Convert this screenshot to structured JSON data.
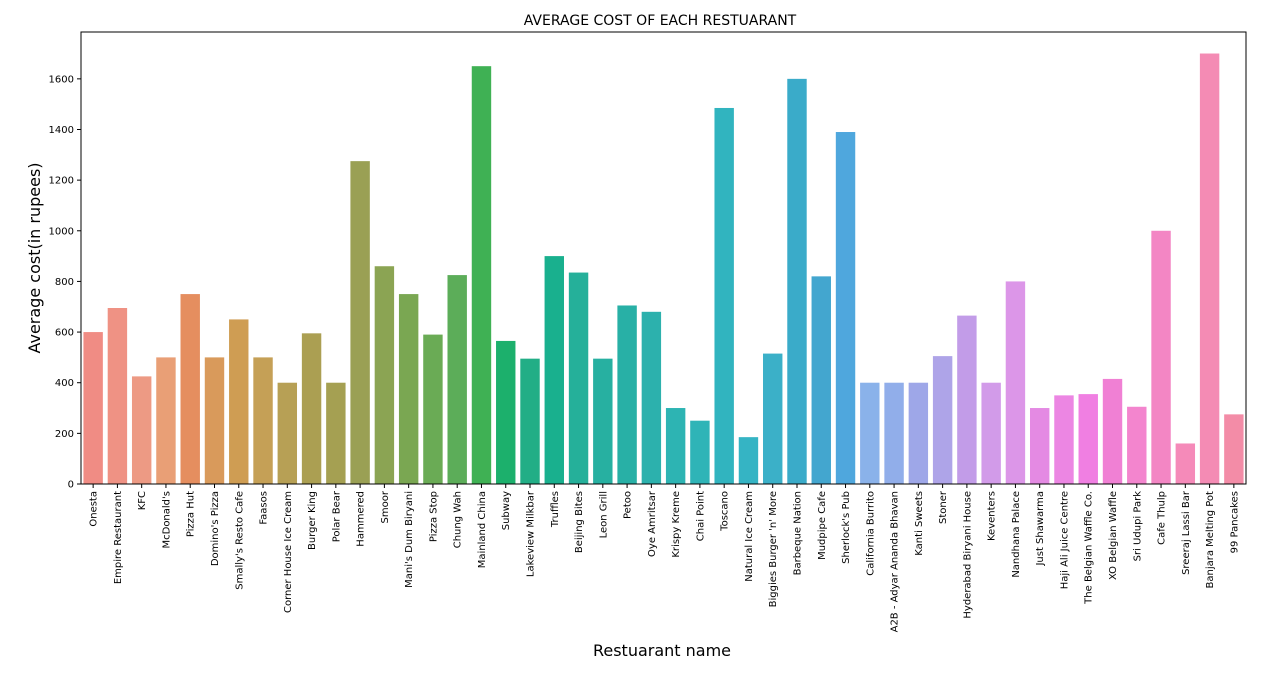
{
  "chart_data": {
    "type": "bar",
    "title": "AVERAGE COST OF EACH RESTUARANT",
    "xlabel": "Restuarant name",
    "ylabel": "Average cost(in rupees)",
    "ylim": [
      0,
      1785
    ],
    "yticks": [
      0,
      200,
      400,
      600,
      800,
      1000,
      1200,
      1400,
      1600
    ],
    "grid": false,
    "legend": "none",
    "categories": [
      "Onesta",
      "Empire Restaurant",
      "KFC",
      "McDonald's",
      "Pizza Hut",
      "Domino's Pizza",
      "Smally's Resto Cafe",
      "Faasos",
      "Corner House Ice Cream",
      "Burger King",
      "Polar Bear",
      "Hammered",
      "Smoor",
      "Mani's Dum Biryani",
      "Pizza Stop",
      "Chung Wah",
      "Mainland China",
      "Subway",
      "Lakeview Milkbar",
      "Truffles",
      "Beijing Bites",
      "Leon Grill",
      "Petoo",
      "Oye Amritsar",
      "Krispy Kreme",
      "Chai Point",
      "Toscano",
      "Natural Ice Cream",
      "Biggies Burger 'n' More",
      "Barbeque Nation",
      "Mudpipe Cafe",
      "Sherlock's Pub",
      "California Burrito",
      "A2B - Adyar Ananda Bhavan",
      "Kanti Sweets",
      "Stoner",
      "Hyderabad Biryani House",
      "Keventers",
      "Nandhana Palace",
      "Just Shawarma",
      "Haji Ali Juice Centre",
      "The Belgian Waffle Co.",
      "XO Belgian Waffle",
      "Sri Udupi Park",
      "Cafe Thulp",
      "Sreeraj Lassi Bar",
      "Banjara Melting Pot",
      "99 Pancakes"
    ],
    "values": [
      600,
      695,
      425,
      500,
      750,
      500,
      650,
      500,
      400,
      595,
      400,
      1275,
      860,
      750,
      590,
      825,
      1650,
      565,
      495,
      900,
      835,
      495,
      705,
      680,
      300,
      250,
      1485,
      185,
      515,
      1600,
      820,
      1390,
      400,
      400,
      400,
      505,
      665,
      400,
      800,
      300,
      350,
      355,
      415,
      305,
      1000,
      160,
      1700,
      275
    ],
    "colors": [
      "#f08c84",
      "#ef9284",
      "#ed9a84",
      "#e99f76",
      "#e58e5f",
      "#d99a5b",
      "#cf9d53",
      "#c5a056",
      "#b7a055",
      "#ab9f52",
      "#a5a052",
      "#9aa054",
      "#8ba453",
      "#7aa752",
      "#6aab55",
      "#5cad59",
      "#3fb154",
      "#1cb06c",
      "#22ae86",
      "#19b08e",
      "#25b09a",
      "#27b0a1",
      "#28b0a6",
      "#2cb1ad",
      "#2db4b3",
      "#2fb4b7",
      "#31b4bf",
      "#35b4c4",
      "#3bb0c8",
      "#3aabc9",
      "#43a6cf",
      "#4fa7dd",
      "#8ab2ea",
      "#91aeea",
      "#9ea7e8",
      "#aea4e8",
      "#c29ce8",
      "#d29be9",
      "#dc96e8",
      "#e48ae3",
      "#ec86e3",
      "#f07fe2",
      "#f080d4",
      "#f385ce",
      "#f386c4",
      "#f58ab9",
      "#f48bb4",
      "#f38ca7"
    ]
  }
}
